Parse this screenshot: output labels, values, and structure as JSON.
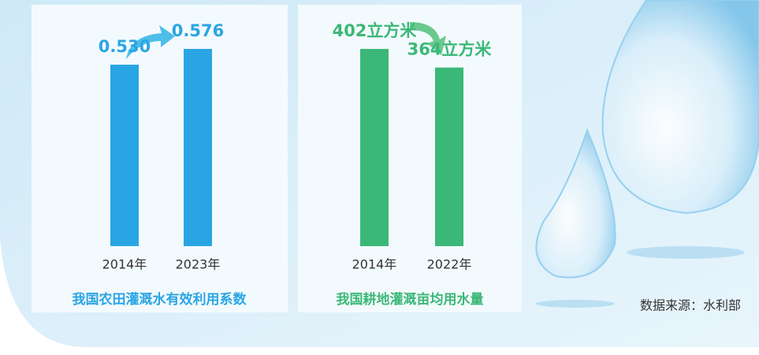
{
  "chart_data": [
    {
      "type": "bar",
      "title": "我国农田灌溉水有效利用系数",
      "categories": [
        "2014年",
        "2023年"
      ],
      "values": [
        0.53,
        0.576
      ],
      "value_labels": [
        "0.530",
        "0.576"
      ],
      "color": "#2aa5e4"
    },
    {
      "type": "bar",
      "title": "我国耕地灌溉亩均用水量",
      "categories": [
        "2014年",
        "2022年"
      ],
      "values": [
        402,
        364
      ],
      "value_labels": [
        "402立方米",
        "364立方米"
      ],
      "color": "#3bb877"
    }
  ],
  "source": "数据来源：水利部"
}
